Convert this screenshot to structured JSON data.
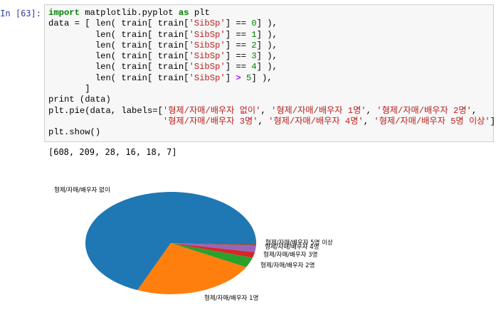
{
  "cell": {
    "prompt": "In [63]:",
    "code_lines": [
      [
        [
          "kw",
          "import"
        ],
        [
          "t",
          " matplotlib.pyplot "
        ],
        [
          "kw",
          "as"
        ],
        [
          "t",
          " plt"
        ]
      ],
      [
        [
          "t",
          "data = [ len( train[ train["
        ],
        [
          "str",
          "'SibSp'"
        ],
        [
          "t",
          "] == "
        ],
        [
          "num",
          "0"
        ],
        [
          "t",
          "] ),"
        ]
      ],
      [
        [
          "t",
          "         len( train[ train["
        ],
        [
          "str",
          "'SibSp'"
        ],
        [
          "t",
          "] == "
        ],
        [
          "num",
          "1"
        ],
        [
          "t",
          "] ),"
        ]
      ],
      [
        [
          "t",
          "         len( train[ train["
        ],
        [
          "str",
          "'SibSp'"
        ],
        [
          "t",
          "] == "
        ],
        [
          "num",
          "2"
        ],
        [
          "t",
          "] ),"
        ]
      ],
      [
        [
          "t",
          "         len( train[ train["
        ],
        [
          "str",
          "'SibSp'"
        ],
        [
          "t",
          "] == "
        ],
        [
          "num",
          "3"
        ],
        [
          "t",
          "] ),"
        ]
      ],
      [
        [
          "t",
          "         len( train[ train["
        ],
        [
          "str",
          "'SibSp'"
        ],
        [
          "t",
          "] == "
        ],
        [
          "num",
          "4"
        ],
        [
          "t",
          "] ),"
        ]
      ],
      [
        [
          "t",
          "         len( train[ train["
        ],
        [
          "str",
          "'SibSp'"
        ],
        [
          "t",
          "] "
        ],
        [
          "op",
          ">"
        ],
        [
          "t",
          " "
        ],
        [
          "num",
          "5"
        ],
        [
          "t",
          "] ),"
        ]
      ],
      [
        [
          "t",
          "       ]"
        ]
      ],
      [
        [
          "t",
          "print (data)"
        ]
      ],
      [
        [
          "t",
          "plt.pie(data, labels=["
        ],
        [
          "str",
          "'형제/자매/배우자 없이'"
        ],
        [
          "t",
          ", "
        ],
        [
          "str",
          "'형제/자매/배우자 1명'"
        ],
        [
          "t",
          ", "
        ],
        [
          "str",
          "'형제/자매/배우자 2명'"
        ],
        [
          "t",
          ","
        ]
      ],
      [
        [
          "t",
          "                      "
        ],
        [
          "str",
          "'형제/자매/배우자 3명'"
        ],
        [
          "t",
          ", "
        ],
        [
          "str",
          "'형제/자매/배우자 4명'"
        ],
        [
          "t",
          ", "
        ],
        [
          "str",
          "'형제/자매/배우자 5명 이상'"
        ],
        [
          "t",
          "])"
        ]
      ],
      [
        [
          "t",
          "plt.show()"
        ]
      ]
    ]
  },
  "output_text": "[608, 209, 28, 16, 18, 7]",
  "chart_data": {
    "type": "pie",
    "values": [
      608,
      209,
      28,
      16,
      18,
      7
    ],
    "labels": [
      "형제/자매/배우자 없이",
      "형제/자매/배우자 1명",
      "형제/자매/배우자 2명",
      "형제/자매/배우자 3명",
      "형제/자매/배우자 4명",
      "형제/자매/배우자 5명 이상"
    ],
    "colors": [
      "#1f77b4",
      "#ff7f0e",
      "#2ca02c",
      "#d62728",
      "#9467bd",
      "#8c564b"
    ],
    "start_angle_deg": 0,
    "direction": "counterclockwise"
  }
}
